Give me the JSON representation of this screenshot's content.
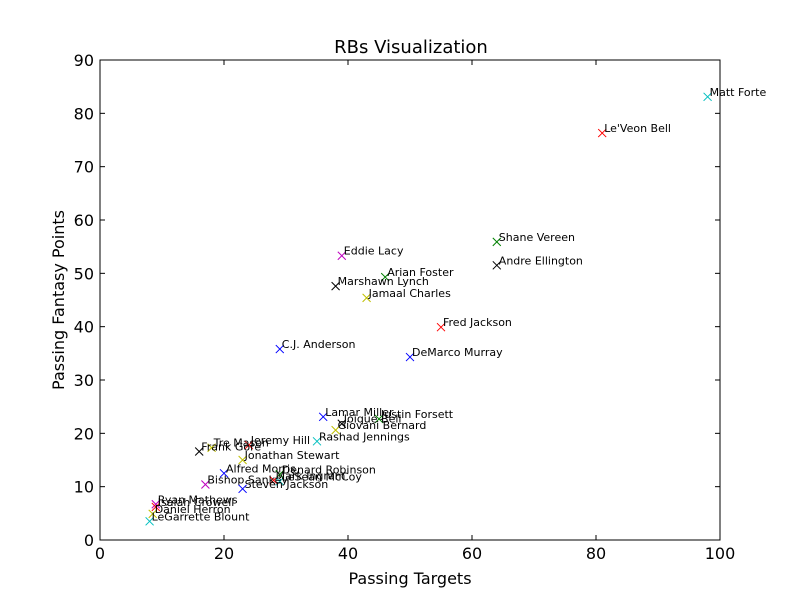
{
  "chart_data": {
    "type": "scatter",
    "title": "RBs Visualization",
    "xlabel": "Passing Targets",
    "ylabel": "Passing Fantasy Points",
    "xlim": [
      0,
      100
    ],
    "ylim": [
      0,
      90
    ],
    "xticks": [
      0,
      20,
      40,
      60,
      80,
      100
    ],
    "yticks": [
      0,
      10,
      20,
      30,
      40,
      50,
      60,
      70,
      80,
      90
    ],
    "marker": "x",
    "grid": false,
    "legend": "none",
    "palette": [
      "#0000ff",
      "#008000",
      "#ff0000",
      "#00bfbf",
      "#bf00bf",
      "#bfbf00",
      "#000000"
    ],
    "points": [
      {
        "label": "Matt Forte",
        "x": 98,
        "y": 83.1,
        "color": "#00bfbf"
      },
      {
        "label": "Le'Veon Bell",
        "x": 81,
        "y": 76.3,
        "color": "#ff0000"
      },
      {
        "label": "Shane Vereen",
        "x": 64,
        "y": 55.9,
        "color": "#008000"
      },
      {
        "label": "Andre Ellington",
        "x": 64,
        "y": 51.5,
        "color": "#000000"
      },
      {
        "label": "Eddie Lacy",
        "x": 39,
        "y": 53.3,
        "color": "#bf00bf"
      },
      {
        "label": "Arian Foster",
        "x": 46,
        "y": 49.3,
        "color": "#008000"
      },
      {
        "label": "Marshawn Lynch",
        "x": 38,
        "y": 47.6,
        "color": "#000000"
      },
      {
        "label": "Jamaal Charles",
        "x": 43,
        "y": 45.4,
        "color": "#bfbf00"
      },
      {
        "label": "Fred Jackson",
        "x": 55,
        "y": 39.9,
        "color": "#ff0000"
      },
      {
        "label": "C.J. Anderson",
        "x": 29,
        "y": 35.8,
        "color": "#0000ff"
      },
      {
        "label": "DeMarco Murray",
        "x": 50,
        "y": 34.3,
        "color": "#0000ff"
      },
      {
        "label": "Lamar Miller",
        "x": 36,
        "y": 23.1,
        "color": "#0000ff"
      },
      {
        "label": "Justin Forsett",
        "x": 45,
        "y": 22.7,
        "color": "#008000"
      },
      {
        "label": "Joique Bell",
        "x": 39,
        "y": 21.8,
        "color": "#000000"
      },
      {
        "label": "Giovani Bernard",
        "x": 38,
        "y": 20.6,
        "color": "#bfbf00"
      },
      {
        "label": "Rashad Jennings",
        "x": 35,
        "y": 18.5,
        "color": "#00bfbf"
      },
      {
        "label": "Jeremy Hill",
        "x": 24,
        "y": 17.8,
        "color": "#ff0000"
      },
      {
        "label": "Tre Mason",
        "x": 18,
        "y": 17.3,
        "color": "#bfbf00"
      },
      {
        "label": "Frank Gore",
        "x": 16,
        "y": 16.6,
        "color": "#000000"
      },
      {
        "label": "Jonathan Stewart",
        "x": 23,
        "y": 15.0,
        "color": "#bfbf00"
      },
      {
        "label": "Alfred Morris",
        "x": 20,
        "y": 12.5,
        "color": "#0000ff"
      },
      {
        "label": "Denard Robinson",
        "x": 29,
        "y": 12.3,
        "color": "#008000"
      },
      {
        "label": "Mark Ingram",
        "x": 28,
        "y": 11.2,
        "color": "#ff0000"
      },
      {
        "label": "LeSean McCoy",
        "x": 29,
        "y": 11.0,
        "color": "#00bfbf"
      },
      {
        "label": "Bishop Sankey",
        "x": 17,
        "y": 10.4,
        "color": "#bf00bf"
      },
      {
        "label": "Steven Jackson",
        "x": 23,
        "y": 9.6,
        "color": "#0000ff"
      },
      {
        "label": "Ryan Mathews",
        "x": 9,
        "y": 6.7,
        "color": "#bf00bf"
      },
      {
        "label": "Isaiah Crowell",
        "x": 9,
        "y": 6.2,
        "color": "#ff0000"
      },
      {
        "label": "Daniel Herron",
        "x": 8.5,
        "y": 4.9,
        "color": "#bfbf00"
      },
      {
        "label": "LeGarrette Blount",
        "x": 8,
        "y": 3.5,
        "color": "#00bfbf"
      }
    ]
  }
}
